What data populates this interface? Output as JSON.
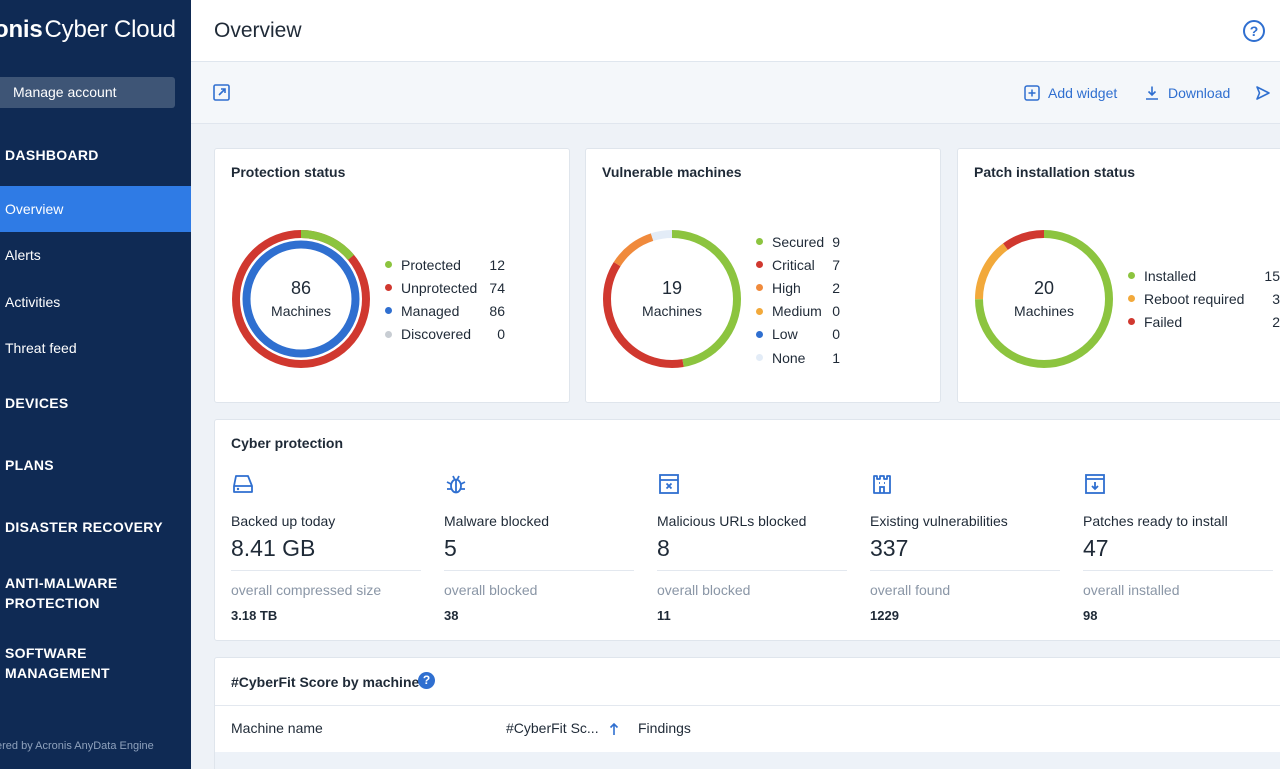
{
  "brand": {
    "part1": "onis",
    "part2": "Cyber Cloud"
  },
  "sidebar": {
    "manage_account": "Manage account",
    "sections": {
      "dashboard": "DASHBOARD",
      "devices": "DEVICES",
      "plans": "PLANS",
      "disaster_recovery": "DISASTER RECOVERY",
      "anti_malware_1": "ANTI-MALWARE",
      "anti_malware_2": "PROTECTION",
      "software_1": "SOFTWARE",
      "software_2": "MANAGEMENT"
    },
    "items": {
      "overview": "Overview",
      "alerts": "Alerts",
      "activities": "Activities",
      "threat_feed": "Threat feed"
    },
    "powered": "ered by Acronis AnyData Engine"
  },
  "header": {
    "title": "Overview",
    "help": "?"
  },
  "toolbar": {
    "add_widget": "Add widget",
    "download": "Download"
  },
  "colors": {
    "green": "#8cc43f",
    "red": "#d0382f",
    "orange": "#f08a3c",
    "amber": "#f2a93b",
    "blue": "#2f6fd0",
    "gray": "#c8cdd3",
    "light": "#e3ecf7"
  },
  "widgets": {
    "protection": {
      "title": "Protection status",
      "center_value": "86",
      "center_label": "Machines",
      "legend": [
        {
          "name": "Protected",
          "value": "12",
          "color": "#8cc43f"
        },
        {
          "name": "Unprotected",
          "value": "74",
          "color": "#d0382f"
        },
        {
          "name": "Managed",
          "value": "86",
          "color": "#2f6fd0"
        },
        {
          "name": "Discovered",
          "value": "0",
          "color": "#c8cdd3"
        }
      ]
    },
    "vulnerable": {
      "title": "Vulnerable machines",
      "center_value": "19",
      "center_label": "Machines",
      "legend": [
        {
          "name": "Secured",
          "value": "9",
          "color": "#8cc43f"
        },
        {
          "name": "Critical",
          "value": "7",
          "color": "#d0382f"
        },
        {
          "name": "High",
          "value": "2",
          "color": "#f08a3c"
        },
        {
          "name": "Medium",
          "value": "0",
          "color": "#f2a93b"
        },
        {
          "name": "Low",
          "value": "0",
          "color": "#2f6fd0"
        },
        {
          "name": "None",
          "value": "1",
          "color": "#e3ecf7"
        }
      ]
    },
    "patch": {
      "title": "Patch installation status",
      "center_value": "20",
      "center_label": "Machines",
      "legend": [
        {
          "name": "Installed",
          "value": "15",
          "color": "#8cc43f"
        },
        {
          "name": "Reboot required",
          "value": "3",
          "color": "#f2a93b"
        },
        {
          "name": "Failed",
          "value": "2",
          "color": "#d0382f"
        }
      ]
    },
    "cyber": {
      "title": "Cyber protection",
      "columns": [
        {
          "icon": "hard-drive-icon",
          "label": "Backed up today",
          "value": "8.41 GB",
          "sub": "overall compressed size",
          "total": "3.18 TB"
        },
        {
          "icon": "bug-icon",
          "label": "Malware blocked",
          "value": "5",
          "sub": "overall blocked",
          "total": "38"
        },
        {
          "icon": "blocked-url-icon",
          "label": "Malicious URLs blocked",
          "value": "8",
          "sub": "overall blocked",
          "total": "11"
        },
        {
          "icon": "castle-icon",
          "label": "Existing vulnerabilities",
          "value": "337",
          "sub": "overall found",
          "total": "1229"
        },
        {
          "icon": "patch-download-icon",
          "label": "Patches ready to install",
          "value": "47",
          "sub": "overall installed",
          "total": "98"
        }
      ]
    },
    "cyberfit": {
      "title": "#CyberFit Score by machine",
      "help": "?",
      "columns": {
        "name": "Machine name",
        "score": "#CyberFit Sc...",
        "findings": "Findings"
      }
    }
  }
}
